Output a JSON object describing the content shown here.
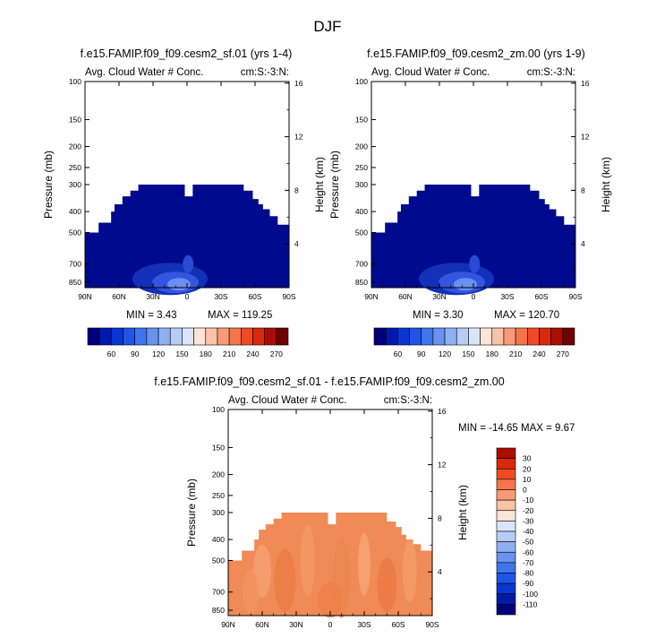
{
  "figure_title": "DJF",
  "colors": {
    "cloud_scale": [
      "#00007a",
      "#001aa8",
      "#0a35d2",
      "#1f55e6",
      "#3f75ec",
      "#6792ee",
      "#8eb0f2",
      "#b6cdf6",
      "#d9e6fa",
      "#fde4d6",
      "#fac2a6",
      "#f89a76",
      "#f5744c",
      "#ef4a24",
      "#d9280c",
      "#a80e02",
      "#6e0000"
    ],
    "diff_scale": [
      "#00007a",
      "#001aa8",
      "#0a35d2",
      "#1f55e6",
      "#3f75ec",
      "#6792ee",
      "#8eb0f2",
      "#b6cdf6",
      "#d9e6fa",
      "#fde4d6",
      "#fac2a6",
      "#f89a76",
      "#f5744c",
      "#ef4a24",
      "#d9280c",
      "#a80e02"
    ],
    "cloud_fill": "#000a8e",
    "diff_fill": "#f08a56"
  },
  "chart_data": [
    {
      "type": "heatmap",
      "title": "f.e15.FAMIP.f09_f09.cesm2_sf.01 (yrs 1-4)",
      "left_label": "Avg. Cloud Water # Conc.",
      "right_label": "cm:S:-3:N:",
      "ylabel": "Pressure (mb)",
      "y2label": "Height (km)",
      "xticks": [
        "90N",
        "60N",
        "30N",
        "0",
        "30S",
        "60S",
        "90S"
      ],
      "yticks": [
        "100",
        "150",
        "200",
        "250",
        "300",
        "400",
        "500",
        "700",
        "850"
      ],
      "y2ticks": [
        "16",
        "12",
        "8",
        "4"
      ],
      "ylim": [
        100,
        900
      ],
      "xlim": [
        90,
        -90
      ],
      "min_label": "MIN =  3.43",
      "max_label": "MAX = 119.25",
      "field_top_profile": {
        "lat": [
          90,
          78,
          67,
          64,
          57,
          50,
          43,
          5,
          2,
          -2,
          -5,
          -48,
          -50,
          -58,
          -63,
          -67,
          -73,
          -80,
          -90
        ],
        "top_mb": [
          500,
          450,
          400,
          370,
          340,
          320,
          300,
          300,
          340,
          340,
          300,
          300,
          320,
          350,
          370,
          390,
          420,
          460,
          500
        ]
      }
    },
    {
      "type": "heatmap",
      "title": "f.e15.FAMIP.f09_f09.cesm2_zm.00 (yrs 1-9)",
      "left_label": "Avg. Cloud Water # Conc.",
      "right_label": "cm:S:-3:N:",
      "ylabel": "Pressure (mb)",
      "y2label": "Height (km)",
      "xticks": [
        "90N",
        "60N",
        "30N",
        "0",
        "30S",
        "60S",
        "90S"
      ],
      "yticks": [
        "100",
        "150",
        "200",
        "250",
        "300",
        "400",
        "500",
        "700",
        "850"
      ],
      "y2ticks": [
        "16",
        "12",
        "8",
        "4"
      ],
      "ylim": [
        100,
        900
      ],
      "xlim": [
        90,
        -90
      ],
      "min_label": "MIN =  3.30",
      "max_label": "MAX = 120.70",
      "field_top_profile": {
        "lat": [
          90,
          78,
          67,
          64,
          57,
          50,
          43,
          5,
          2,
          -2,
          -5,
          -48,
          -50,
          -58,
          -63,
          -67,
          -73,
          -80,
          -90
        ],
        "top_mb": [
          500,
          450,
          400,
          370,
          340,
          320,
          300,
          300,
          340,
          340,
          300,
          300,
          320,
          350,
          370,
          390,
          420,
          460,
          500
        ]
      }
    },
    {
      "type": "heatmap",
      "title": "f.e15.FAMIP.f09_f09.cesm2_sf.01 - f.e15.FAMIP.f09_f09.cesm2_zm.00",
      "left_label": "Avg. Cloud Water # Conc.",
      "right_label": "cm:S:-3:N:",
      "ylabel": "Pressure (mb)",
      "y2label": "Height (km)",
      "xticks": [
        "90N",
        "60N",
        "30N",
        "0",
        "30S",
        "60S",
        "90S"
      ],
      "yticks": [
        "100",
        "150",
        "200",
        "250",
        "300",
        "400",
        "500",
        "700",
        "850"
      ],
      "y2ticks": [
        "16",
        "12",
        "8",
        "4"
      ],
      "ylim": [
        100,
        900
      ],
      "xlim": [
        90,
        -90
      ],
      "minmax_label": "MIN = -14.65   MAX =   9.67",
      "field_top_profile": {
        "lat": [
          90,
          78,
          67,
          63,
          57,
          50,
          43,
          5,
          2,
          -2,
          -5,
          -48,
          -50,
          -58,
          -63,
          -67,
          -73,
          -80,
          -90
        ],
        "top_mb": [
          500,
          450,
          400,
          360,
          340,
          320,
          300,
          300,
          340,
          340,
          300,
          300,
          330,
          350,
          380,
          400,
          420,
          450,
          500
        ]
      }
    }
  ],
  "cloud_colorbar": {
    "labels": [
      "60",
      "90",
      "120",
      "150",
      "180",
      "210",
      "240",
      "270"
    ]
  },
  "diff_colorbar": {
    "labels": [
      "30",
      "20",
      "10",
      "0",
      "-10",
      "-20",
      "-30",
      "-40",
      "-50",
      "-60",
      "-70",
      "-80",
      "-90",
      "-100",
      "-110"
    ]
  }
}
